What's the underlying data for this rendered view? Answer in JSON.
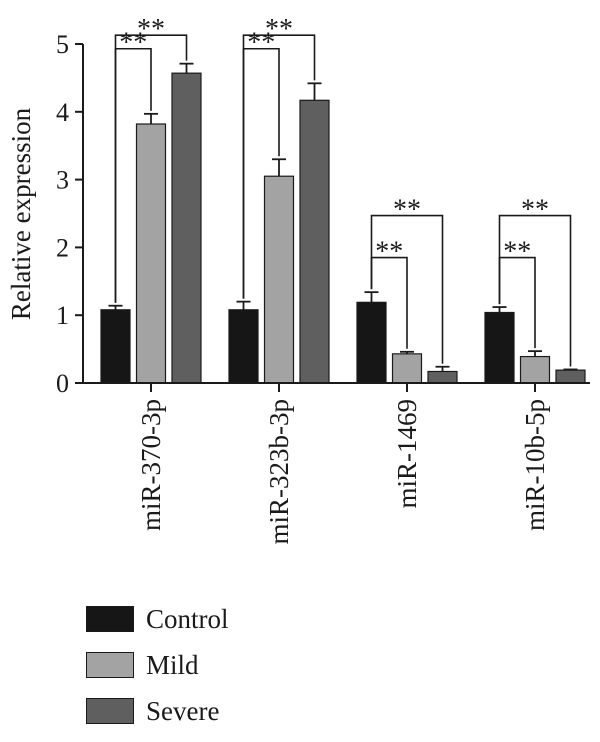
{
  "chart_data": {
    "type": "bar",
    "ylabel": "Relative expression",
    "ylim": [
      0,
      5
    ],
    "yticks": [
      0,
      1,
      2,
      3,
      4,
      5
    ],
    "categories": [
      "miR-370-3p",
      "miR-323b-3p",
      "miR-1469",
      "miR-10b-5p"
    ],
    "series": [
      {
        "name": "Control",
        "color": "#161616",
        "values": [
          1.08,
          1.08,
          1.19,
          1.04
        ],
        "errors": [
          0.06,
          0.12,
          0.15,
          0.08
        ]
      },
      {
        "name": "Mild",
        "color": "#a3a3a3",
        "values": [
          3.82,
          3.05,
          0.43,
          0.39
        ],
        "errors": [
          0.15,
          0.25,
          0.03,
          0.08
        ]
      },
      {
        "name": "Severe",
        "color": "#5f5f5f",
        "values": [
          4.57,
          4.17,
          0.17,
          0.19
        ],
        "errors": [
          0.14,
          0.25,
          0.07,
          0.01
        ]
      }
    ],
    "significance": [
      {
        "category": 0,
        "from": "Control",
        "to": "Mild",
        "label": "**",
        "level": 4.93
      },
      {
        "category": 0,
        "from": "Control",
        "to": "Severe",
        "label": "**",
        "level": 5.13
      },
      {
        "category": 1,
        "from": "Control",
        "to": "Mild",
        "label": "**",
        "level": 4.93
      },
      {
        "category": 1,
        "from": "Control",
        "to": "Severe",
        "label": "**",
        "level": 5.13
      },
      {
        "category": 2,
        "from": "Control",
        "to": "Mild",
        "label": "**",
        "level": 1.85
      },
      {
        "category": 2,
        "from": "Control",
        "to": "Severe",
        "label": "**",
        "level": 2.47
      },
      {
        "category": 3,
        "from": "Control",
        "to": "Mild",
        "label": "**",
        "level": 1.85
      },
      {
        "category": 3,
        "from": "Control",
        "to": "Severe",
        "label": "**",
        "level": 2.47
      }
    ],
    "legend": "bottom-left",
    "grid": false
  }
}
